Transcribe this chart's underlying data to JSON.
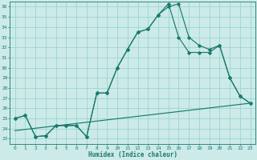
{
  "xlabel": "Humidex (Indice chaleur)",
  "bg_color": "#cceae8",
  "grid_color": "#99d5d2",
  "line_color": "#1a7a6e",
  "xlim": [
    -0.5,
    23.5
  ],
  "ylim": [
    22.5,
    36.5
  ],
  "xticks": [
    0,
    1,
    2,
    3,
    4,
    5,
    6,
    7,
    8,
    9,
    10,
    11,
    12,
    13,
    14,
    15,
    16,
    17,
    18,
    19,
    20,
    21,
    22,
    23
  ],
  "yticks": [
    23,
    24,
    25,
    26,
    27,
    28,
    29,
    30,
    31,
    32,
    33,
    34,
    35,
    36
  ],
  "line1_x": [
    0,
    1,
    2,
    3,
    4,
    5,
    6,
    7,
    8,
    9,
    10,
    11,
    12,
    13,
    14,
    15,
    16,
    17,
    18,
    19,
    20,
    21,
    22,
    23
  ],
  "line1_y": [
    25.0,
    25.3,
    23.2,
    23.3,
    24.3,
    24.3,
    24.3,
    23.2,
    27.5,
    27.5,
    30.0,
    31.8,
    33.5,
    33.8,
    35.2,
    36.0,
    36.3,
    33.0,
    32.2,
    31.8,
    32.2,
    29.0,
    27.2,
    26.5
  ],
  "line2_x": [
    0,
    1,
    2,
    3,
    4,
    5,
    6,
    7,
    8,
    9,
    10,
    11,
    12,
    13,
    14,
    15,
    16,
    17,
    18,
    19,
    20,
    21,
    22,
    23
  ],
  "line2_y": [
    25.0,
    25.3,
    23.2,
    23.3,
    24.3,
    24.3,
    24.3,
    23.2,
    27.5,
    27.5,
    30.0,
    31.8,
    33.5,
    33.8,
    35.2,
    36.3,
    33.0,
    31.5,
    31.5,
    31.5,
    32.2,
    29.0,
    27.2,
    26.5
  ],
  "line3_x": [
    0,
    23
  ],
  "line3_y": [
    23.8,
    26.5
  ],
  "marker": "D",
  "markersize": 1.8,
  "lw": 0.85
}
